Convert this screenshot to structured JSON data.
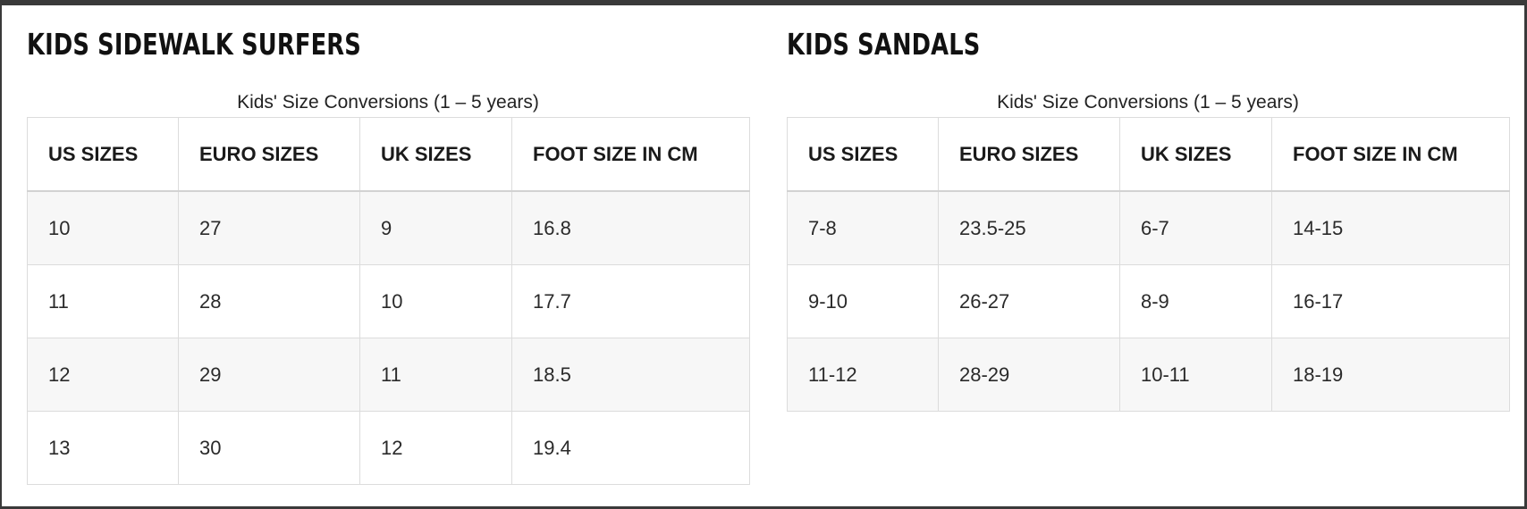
{
  "sidewalk_surfers": {
    "title": "KIDS SIDEWALK SURFERS",
    "caption": "Kids' Size Conversions (1 – 5 years)",
    "headers": [
      "US SIZES",
      "EURO SIZES",
      "UK SIZES",
      "FOOT SIZE IN CM"
    ],
    "rows": [
      [
        "10",
        "27",
        "9",
        "16.8"
      ],
      [
        "11",
        "28",
        "10",
        "17.7"
      ],
      [
        "12",
        "29",
        "11",
        "18.5"
      ],
      [
        "13",
        "30",
        "12",
        "19.4"
      ]
    ]
  },
  "sandals": {
    "title": "KIDS SANDALS",
    "caption": "Kids' Size Conversions (1 – 5 years)",
    "headers": [
      "US SIZES",
      "EURO SIZES",
      "UK SIZES",
      "FOOT SIZE IN CM"
    ],
    "rows": [
      [
        "7-8",
        "23.5-25",
        "6-7",
        "14-15"
      ],
      [
        "9-10",
        "26-27",
        "8-9",
        "16-17"
      ],
      [
        "11-12",
        "28-29",
        "10-11",
        "18-19"
      ]
    ]
  }
}
